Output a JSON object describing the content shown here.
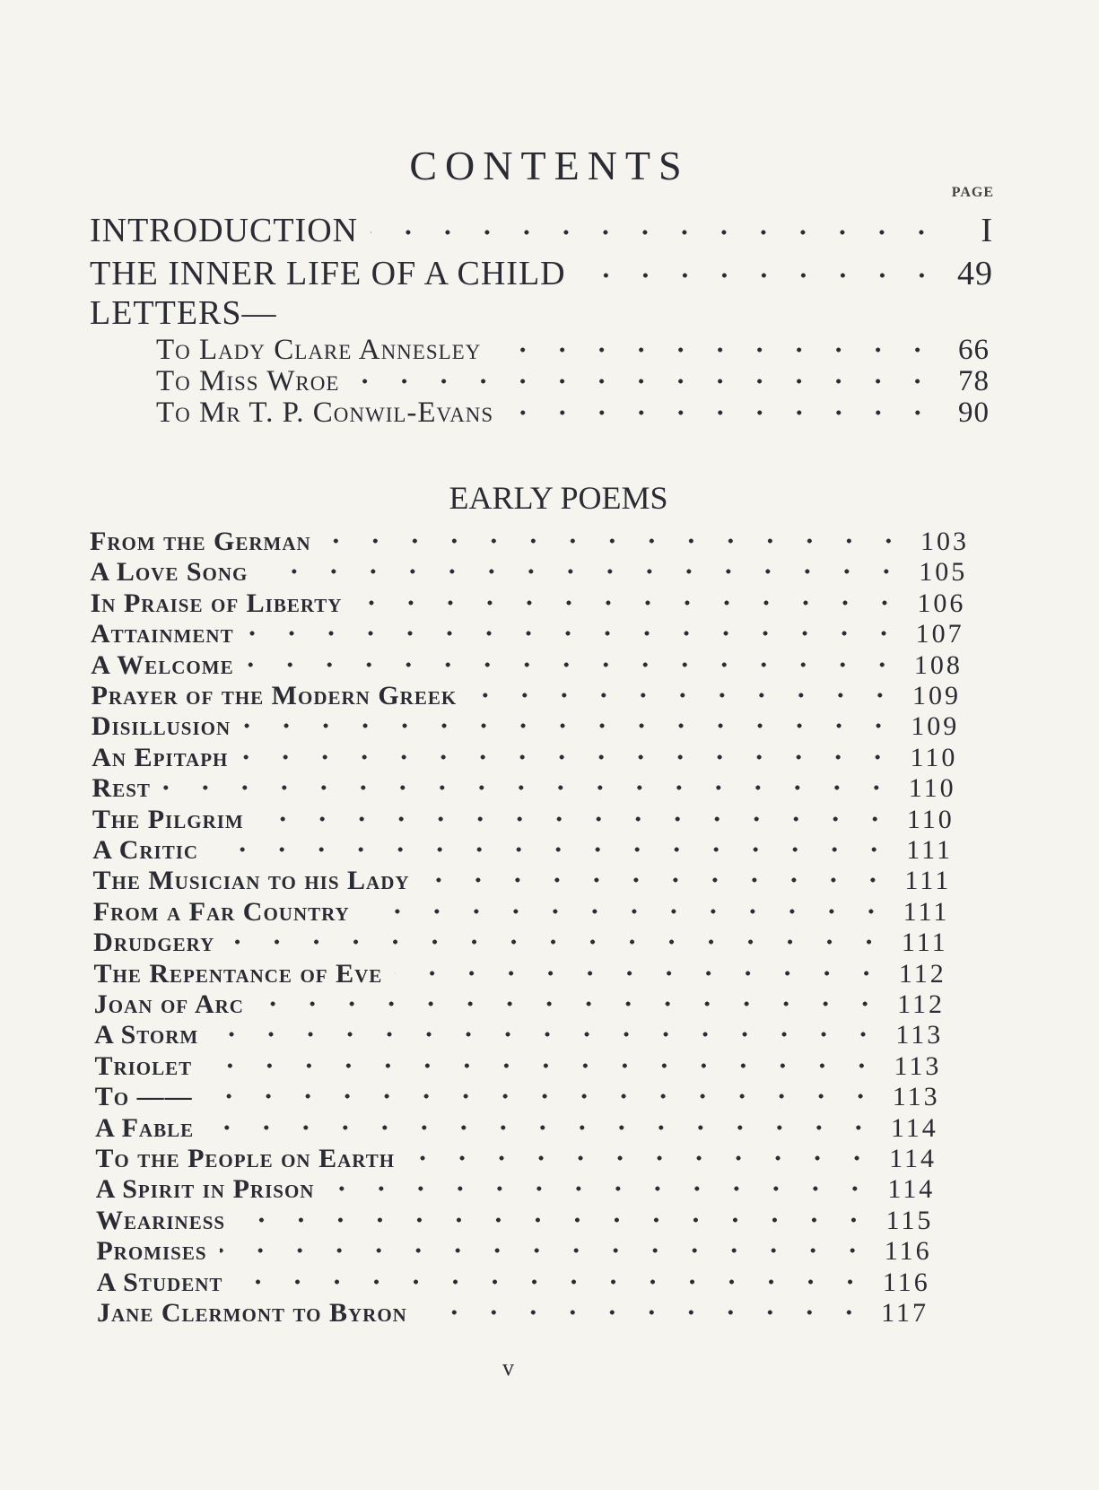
{
  "heading": "CONTENTS",
  "page_label": "PAGE",
  "front_matter": [
    {
      "title": "INTRODUCTION",
      "page": "I"
    },
    {
      "title": "THE INNER LIFE OF A CHILD",
      "page": "49"
    },
    {
      "title": "LETTERS—",
      "page": ""
    }
  ],
  "letters": [
    {
      "title": "To Lady Clare Annesley",
      "page": "66"
    },
    {
      "title": "To Miss Wroe",
      "page": "78"
    },
    {
      "title": "To Mr T. P. Conwil-Evans",
      "page": "90"
    }
  ],
  "section_title": "EARLY POEMS",
  "poems": [
    {
      "title": "From the German",
      "page": "103"
    },
    {
      "title": "A Love Song",
      "page": "105"
    },
    {
      "title": "In Praise of Liberty",
      "page": "106"
    },
    {
      "title": "Attainment",
      "page": "107"
    },
    {
      "title": "A Welcome",
      "page": "108"
    },
    {
      "title": "Prayer of the Modern Greek",
      "page": "109"
    },
    {
      "title": "Disillusion",
      "page": "109"
    },
    {
      "title": "An Epitaph",
      "page": "110"
    },
    {
      "title": "Rest",
      "page": "110"
    },
    {
      "title": "The Pilgrim",
      "page": "110"
    },
    {
      "title": "A Critic",
      "page": "111"
    },
    {
      "title": "The Musician to his Lady",
      "page": "111"
    },
    {
      "title": "From a Far Country",
      "page": "111"
    },
    {
      "title": "Drudgery",
      "page": "111"
    },
    {
      "title": "The Repentance of Eve",
      "page": "112"
    },
    {
      "title": "Joan of Arc",
      "page": "112"
    },
    {
      "title": "A Storm",
      "page": "113"
    },
    {
      "title": "Triolet",
      "page": "113"
    },
    {
      "title": "To ——",
      "page": "113"
    },
    {
      "title": "A Fable",
      "page": "114"
    },
    {
      "title": "To the People on Earth",
      "page": "114"
    },
    {
      "title": "A Spirit in Prison",
      "page": "114"
    },
    {
      "title": "Weariness",
      "page": "115"
    },
    {
      "title": "Promises",
      "page": "116"
    },
    {
      "title": "A Student",
      "page": "116"
    },
    {
      "title": "Jane Clermont to Byron",
      "page": "117"
    }
  ],
  "folio": "v"
}
